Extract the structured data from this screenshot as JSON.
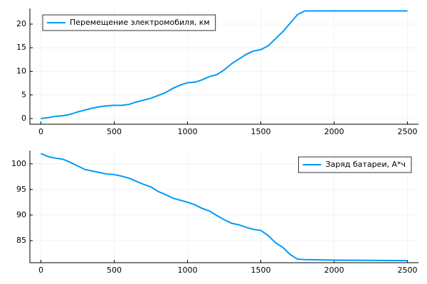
{
  "chart_data": [
    {
      "type": "line",
      "x": [
        0,
        50,
        100,
        150,
        200,
        250,
        300,
        350,
        400,
        450,
        500,
        550,
        600,
        650,
        700,
        750,
        800,
        850,
        900,
        950,
        1000,
        1050,
        1100,
        1150,
        1200,
        1250,
        1300,
        1350,
        1400,
        1450,
        1500,
        1550,
        1600,
        1650,
        1700,
        1750,
        1800,
        1900,
        2000,
        2500
      ],
      "series": [
        {
          "name": "Перемещение электромобиля, км",
          "color": "#009af9",
          "values": [
            0,
            0.2,
            0.5,
            0.6,
            0.9,
            1.4,
            1.8,
            2.2,
            2.5,
            2.7,
            2.8,
            2.8,
            3.0,
            3.5,
            3.9,
            4.3,
            4.9,
            5.5,
            6.4,
            7.1,
            7.6,
            7.7,
            8.2,
            8.9,
            9.3,
            10.3,
            11.6,
            12.6,
            13.6,
            14.3,
            14.6,
            15.4,
            16.9,
            18.4,
            20.2,
            22.0,
            22.8,
            22.8,
            22.8,
            22.8
          ]
        }
      ],
      "xlim": [
        -75,
        2575
      ],
      "ylim": [
        -1.2,
        23.3
      ],
      "xticks": [
        0,
        500,
        1000,
        1500,
        2000,
        2500
      ],
      "yticks": [
        0,
        5,
        10,
        15,
        20
      ],
      "grid": true,
      "legend": "top-left"
    },
    {
      "type": "line",
      "x": [
        0,
        50,
        100,
        150,
        200,
        250,
        300,
        350,
        400,
        450,
        500,
        550,
        600,
        650,
        700,
        750,
        800,
        850,
        900,
        950,
        1000,
        1050,
        1100,
        1150,
        1200,
        1250,
        1300,
        1350,
        1400,
        1450,
        1500,
        1550,
        1600,
        1650,
        1700,
        1750,
        1800,
        2000,
        2500
      ],
      "series": [
        {
          "name": "Заряд батареи, А*ч",
          "color": "#009af9",
          "values": [
            102,
            101.4,
            101.1,
            100.9,
            100.3,
            99.6,
            98.9,
            98.6,
            98.3,
            98,
            97.9,
            97.6,
            97.2,
            96.6,
            96,
            95.5,
            94.6,
            94,
            93.3,
            92.9,
            92.5,
            92,
            91.3,
            90.8,
            89.9,
            89.1,
            88.4,
            88.1,
            87.6,
            87.2,
            87,
            86,
            84.6,
            83.7,
            82.3,
            81.4,
            81.3,
            81.2,
            81.1
          ]
        }
      ],
      "xlim": [
        -75,
        2575
      ],
      "ylim": [
        80.7,
        102.6
      ],
      "xticks": [
        0,
        500,
        1000,
        1500,
        2000,
        2500
      ],
      "yticks": [
        85,
        90,
        95,
        100
      ],
      "grid": true,
      "legend": "top-right"
    }
  ]
}
